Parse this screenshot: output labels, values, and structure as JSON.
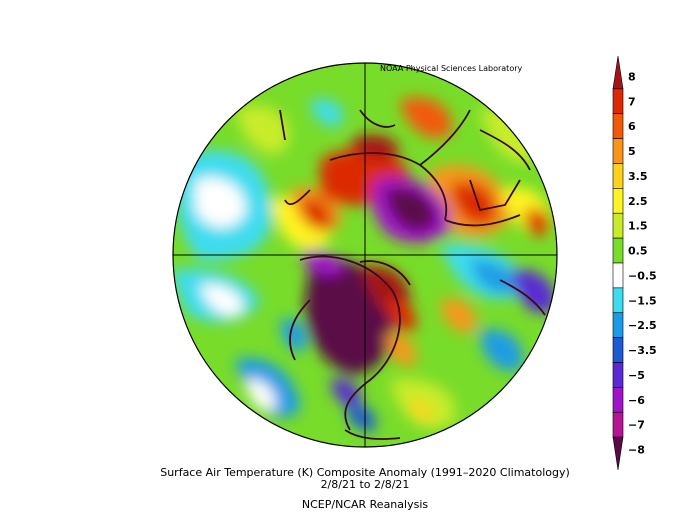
{
  "credit": "NOAA Physical Sciences Laboratory",
  "caption": {
    "line1": "Surface Air Temperature (K) Composite Anomaly (1991–2020 Climatology)",
    "line2": "2/8/21  to 2/8/21",
    "line3": "NCEP/NCAR Reanalysis"
  },
  "colorbar": {
    "labels": [
      "8",
      "7",
      "6",
      "5",
      "3.5",
      "2.5",
      "1.5",
      "0.5",
      "−0.5",
      "−1.5",
      "−2.5",
      "−3.5",
      "−5",
      "−6",
      "−7",
      "−8"
    ],
    "colors": [
      "#a51414",
      "#dc2a06",
      "#f25a08",
      "#f7961a",
      "#ffd21c",
      "#fff423",
      "#c8ec2a",
      "#78dc2a",
      "#ffffff",
      "#3cdcf0",
      "#1e9be6",
      "#1e5ad2",
      "#5a2ad2",
      "#a014c8",
      "#b41496",
      "#5a0a46"
    ]
  }
}
